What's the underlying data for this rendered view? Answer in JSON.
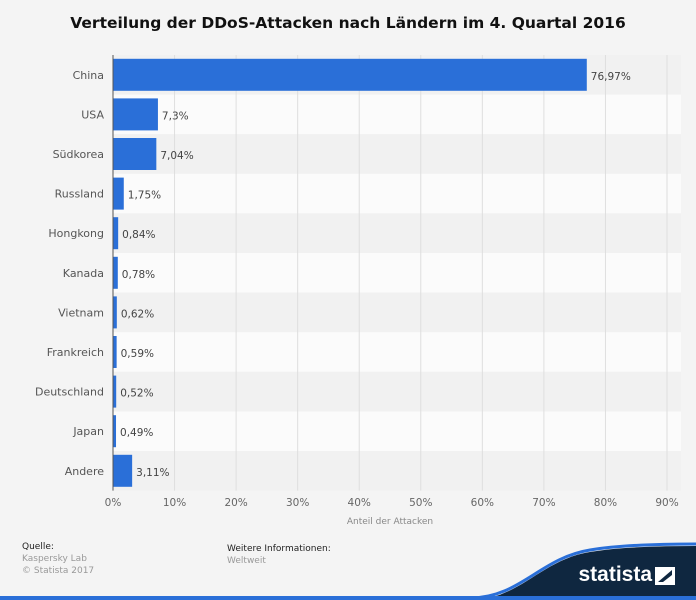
{
  "chart_data": {
    "type": "bar",
    "orientation": "horizontal",
    "title": "Verteilung der DDoS-Attacken nach Ländern im 4. Quartal 2016",
    "xlabel": "Anteil der Attacken",
    "categories": [
      "China",
      "USA",
      "Südkorea",
      "Russland",
      "Hongkong",
      "Kanada",
      "Vietnam",
      "Frankreich",
      "Deutschland",
      "Japan",
      "Andere"
    ],
    "values": [
      76.97,
      7.3,
      7.04,
      1.75,
      0.84,
      0.78,
      0.62,
      0.59,
      0.52,
      0.49,
      3.11
    ],
    "value_labels": [
      "76,97%",
      "7,3%",
      "7,04%",
      "1,75%",
      "0,84%",
      "0,78%",
      "0,62%",
      "0,59%",
      "0,52%",
      "0,49%",
      "3,11%"
    ],
    "xlim": [
      0,
      90
    ],
    "xticks": [
      "0%",
      "10%",
      "20%",
      "30%",
      "40%",
      "50%",
      "60%",
      "70%",
      "80%",
      "90%"
    ],
    "grid": true,
    "bar_color": "#2a6fd8"
  },
  "footer": {
    "source_label": "Quelle:",
    "source": "Kaspersky Lab",
    "copyright": "© Statista 2017",
    "info_label": "Weitere Informationen:",
    "info": "Weltweit"
  },
  "logo": {
    "text": "statista"
  }
}
